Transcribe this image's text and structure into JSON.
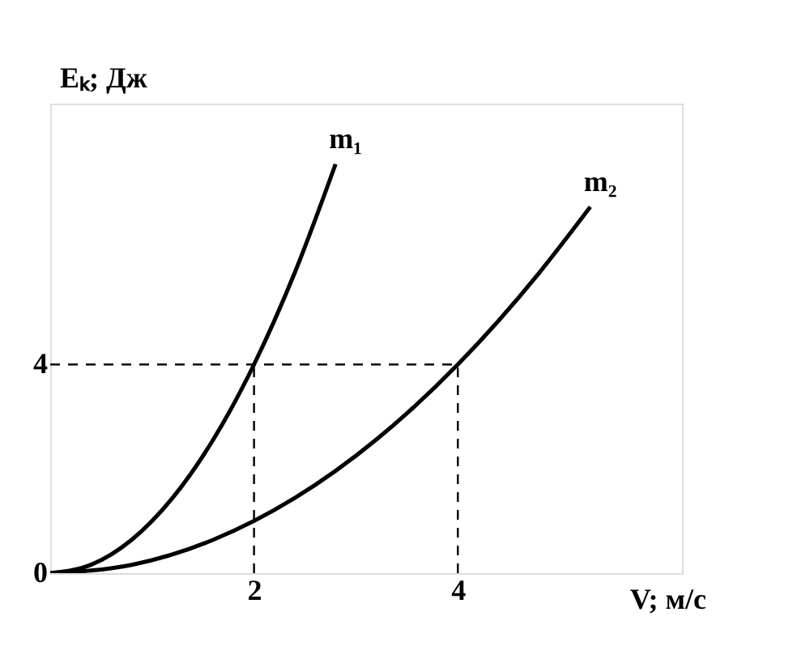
{
  "chart_data": {
    "type": "line",
    "xlabel": "V; м/с",
    "ylabel": "Eₖ; Дж",
    "xlim": [
      0,
      6.2
    ],
    "ylim": [
      0,
      9
    ],
    "xticks": [
      2,
      4
    ],
    "yticks": [
      0,
      4
    ],
    "grid": false,
    "marker": "none",
    "series": [
      {
        "name": "m₁",
        "color": "#000000",
        "line_style": "solid",
        "x": [
          0,
          0.4,
          0.8,
          1.2,
          1.6,
          2.0,
          2.4,
          2.8
        ],
        "values": [
          0,
          0.16,
          0.64,
          1.44,
          2.56,
          4,
          5.76,
          7.84
        ]
      },
      {
        "name": "m₂",
        "color": "#000000",
        "line_style": "solid",
        "x": [
          0,
          0.8,
          1.6,
          2.4,
          3.2,
          4.0,
          4.8,
          5.3
        ],
        "values": [
          0,
          0.16,
          0.64,
          1.44,
          2.56,
          4,
          5.76,
          7.02
        ]
      },
      {
        "color": "#000000",
        "line_style": "dashed",
        "x": [
          0,
          4
        ],
        "values": [
          4,
          4
        ]
      },
      {
        "color": "#000000",
        "line_style": "dashed",
        "x": [
          2,
          2
        ],
        "values": [
          0,
          4
        ]
      },
      {
        "color": "#000000",
        "line_style": "dashed",
        "x": [
          4,
          4
        ],
        "values": [
          0,
          4
        ]
      }
    ]
  }
}
